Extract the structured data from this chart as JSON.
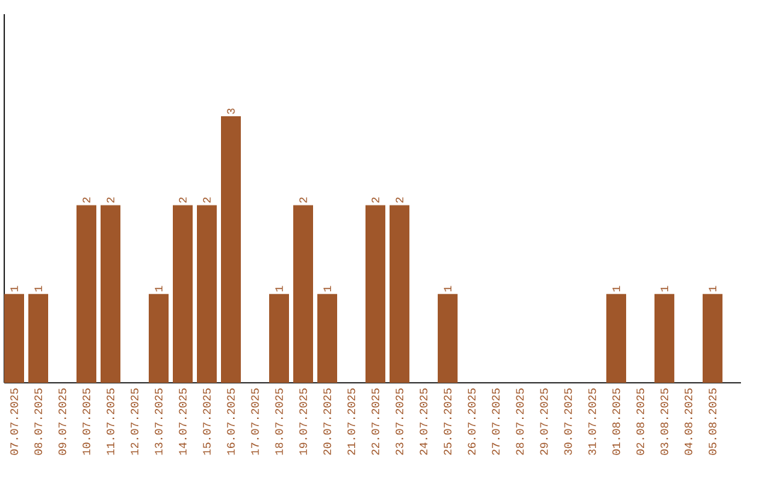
{
  "chart_data": {
    "type": "bar",
    "categories": [
      "07.07.2025",
      "08.07.2025",
      "09.07.2025",
      "10.07.2025",
      "11.07.2025",
      "12.07.2025",
      "13.07.2025",
      "14.07.2025",
      "15.07.2025",
      "16.07.2025",
      "17.07.2025",
      "18.07.2025",
      "19.07.2025",
      "20.07.2025",
      "21.07.2025",
      "22.07.2025",
      "23.07.2025",
      "24.07.2025",
      "25.07.2025",
      "26.07.2025",
      "27.07.2025",
      "28.07.2025",
      "29.07.2025",
      "30.07.2025",
      "31.07.2025",
      "01.08.2025",
      "02.08.2025",
      "03.08.2025",
      "04.08.2025",
      "05.08.2025"
    ],
    "values": [
      1,
      1,
      0,
      2,
      2,
      0,
      1,
      2,
      2,
      3,
      0,
      1,
      2,
      1,
      0,
      2,
      2,
      0,
      1,
      0,
      0,
      0,
      0,
      0,
      0,
      1,
      0,
      1,
      0,
      1
    ],
    "value_labels": [
      "1",
      "1",
      null,
      "2",
      "2",
      null,
      "1",
      "2",
      "2",
      "3",
      null,
      "1",
      "2",
      "1",
      null,
      "2",
      "2",
      null,
      "1",
      null,
      null,
      null,
      null,
      null,
      null,
      "1",
      null,
      "1",
      null,
      "1"
    ],
    "color": "#a0572a",
    "ylim": [
      0,
      4.15
    ],
    "tick_labels": "x"
  }
}
